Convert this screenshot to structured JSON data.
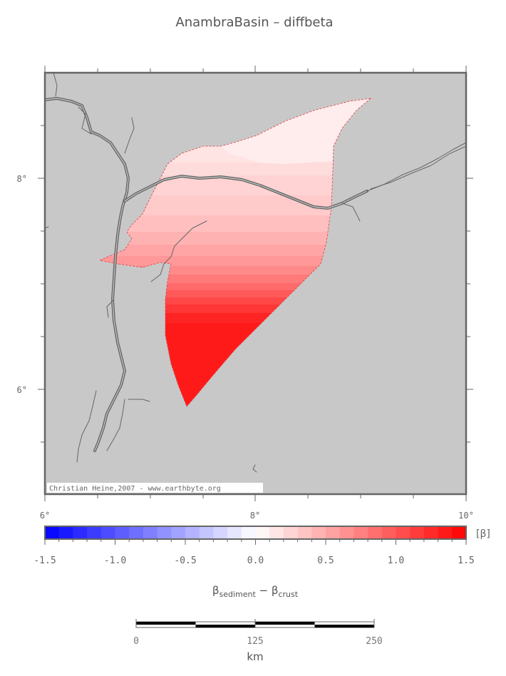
{
  "title": "AnambraBasin – diffbeta",
  "map": {
    "lat_labels": [
      "8°",
      "6°"
    ],
    "lon_labels": [
      "6°",
      "8°",
      "10°"
    ],
    "credit": "Christian Heine,2007 - www.earthbyte.org",
    "background_color": "#c8c8c8",
    "river_color": "#666666"
  },
  "colorbar": {
    "unit": "[β]",
    "ticks": [
      "-1.5",
      "-1.0",
      "-0.5",
      "0.0",
      "0.5",
      "1.0",
      "1.5"
    ],
    "range": [
      -1.5,
      1.5
    ],
    "bins": 30,
    "low_color": "#0000ff",
    "mid_color": "#ffffff",
    "high_color": "#ff0000",
    "label_main": "β",
    "label_sub1": "sediment",
    "label_minus": " − ",
    "label_sub2": "crust"
  },
  "scalebar": {
    "ticks": [
      "0",
      "125",
      "250"
    ],
    "unit": "km"
  }
}
